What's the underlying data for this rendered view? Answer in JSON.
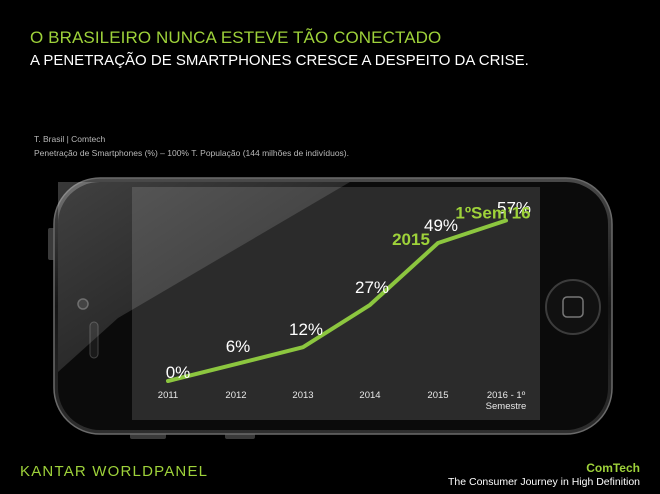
{
  "header": {
    "title": "O BRASILEIRO NUNCA ESTEVE TÃO CONECTADO",
    "subtitle": "A PENETRAÇÃO DE SMARTPHONES CRESCE A DESPEITO DA CRISE.",
    "source": "T. Brasil | Comtech",
    "description": "Penetração de Smartphones (%) – 100% T. População (144 milhões de indivíduos)."
  },
  "chart_data": {
    "type": "line",
    "categories": [
      "2011",
      "2012",
      "2013",
      "2014",
      "2015",
      "2016 - 1º Semestre"
    ],
    "values": [
      0,
      6,
      12,
      27,
      49,
      57
    ],
    "data_labels": [
      "0%",
      "6%",
      "12%",
      "27%",
      "49%",
      "57%"
    ],
    "ylim": [
      0,
      60
    ],
    "grid": false,
    "line_color": "#8cc63f",
    "highlights": [
      {
        "label": "2015",
        "category_index": 4
      },
      {
        "label": "1ºSem’16",
        "category_index": 5
      }
    ]
  },
  "footer": {
    "brand": "KANTAR WORLDPANEL",
    "partner": "ComTech",
    "tagline": "The Consumer Journey in High Definition"
  },
  "colors": {
    "accent": "#9ed23a",
    "line": "#8cc63f",
    "background": "#000000",
    "screen": "#2b2b2b"
  }
}
